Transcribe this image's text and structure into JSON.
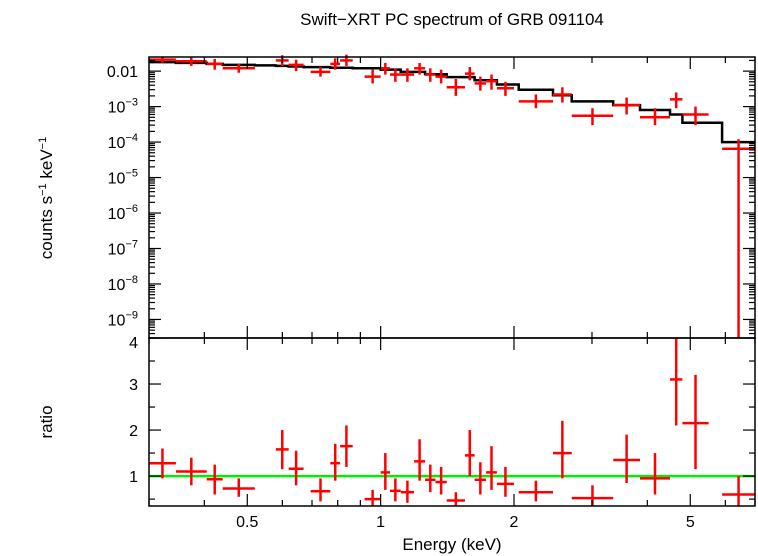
{
  "chart_data": [
    {
      "panel": "spectrum",
      "type": "scatter",
      "title": "Swift−XRT PC spectrum of GRB 091104",
      "ylabel_parts": {
        "pre": "counts s",
        "sup1": "−1",
        "mid": " keV",
        "sup2": "−1"
      },
      "xscale": "log",
      "yscale": "log",
      "xlim": [
        0.3,
        7.0
      ],
      "ylim": [
        3e-10,
        0.025
      ],
      "yticks": [
        {
          "v": 0.01,
          "base": "0.01",
          "exp": ""
        },
        {
          "v": 0.001,
          "base": "10",
          "exp": "−3"
        },
        {
          "v": 0.0001,
          "base": "10",
          "exp": "−4"
        },
        {
          "v": 1e-05,
          "base": "10",
          "exp": "−5"
        },
        {
          "v": 1e-06,
          "base": "10",
          "exp": "−6"
        },
        {
          "v": 1e-07,
          "base": "10",
          "exp": "−7"
        },
        {
          "v": 1e-08,
          "base": "10",
          "exp": "−8"
        },
        {
          "v": 1e-09,
          "base": "10",
          "exp": "−9"
        }
      ],
      "data_color": "#ff0000",
      "model_color": "#000000",
      "data": [
        {
          "x0": 0.3,
          "x1": 0.345,
          "y": 0.021,
          "ylo": 0.017,
          "yhi": 0.026
        },
        {
          "x0": 0.345,
          "x1": 0.405,
          "y": 0.019,
          "ylo": 0.014,
          "yhi": 0.025
        },
        {
          "x0": 0.405,
          "x1": 0.44,
          "y": 0.016,
          "ylo": 0.011,
          "yhi": 0.022
        },
        {
          "x0": 0.44,
          "x1": 0.52,
          "y": 0.012,
          "ylo": 0.009,
          "yhi": 0.016
        },
        {
          "x0": 0.58,
          "x1": 0.62,
          "y": 0.02,
          "ylo": 0.014,
          "yhi": 0.028
        },
        {
          "x0": 0.62,
          "x1": 0.67,
          "y": 0.015,
          "ylo": 0.01,
          "yhi": 0.021
        },
        {
          "x0": 0.695,
          "x1": 0.77,
          "y": 0.0095,
          "ylo": 0.007,
          "yhi": 0.013
        },
        {
          "x0": 0.77,
          "x1": 0.81,
          "y": 0.016,
          "ylo": 0.011,
          "yhi": 0.023
        },
        {
          "x0": 0.81,
          "x1": 0.865,
          "y": 0.02,
          "ylo": 0.014,
          "yhi": 0.029
        },
        {
          "x0": 0.92,
          "x1": 1.0,
          "y": 0.007,
          "ylo": 0.0045,
          "yhi": 0.011
        },
        {
          "x0": 1.0,
          "x1": 1.05,
          "y": 0.012,
          "ylo": 0.008,
          "yhi": 0.017
        },
        {
          "x0": 1.05,
          "x1": 1.11,
          "y": 0.008,
          "ylo": 0.005,
          "yhi": 0.012
        },
        {
          "x0": 1.11,
          "x1": 1.19,
          "y": 0.008,
          "ylo": 0.005,
          "yhi": 0.012
        },
        {
          "x0": 1.19,
          "x1": 1.26,
          "y": 0.012,
          "ylo": 0.008,
          "yhi": 0.017
        },
        {
          "x0": 1.26,
          "x1": 1.33,
          "y": 0.008,
          "ylo": 0.005,
          "yhi": 0.012
        },
        {
          "x0": 1.33,
          "x1": 1.41,
          "y": 0.007,
          "ylo": 0.0045,
          "yhi": 0.011
        },
        {
          "x0": 1.41,
          "x1": 1.55,
          "y": 0.0035,
          "ylo": 0.002,
          "yhi": 0.006
        },
        {
          "x0": 1.55,
          "x1": 1.63,
          "y": 0.0085,
          "ylo": 0.0055,
          "yhi": 0.013
        },
        {
          "x0": 1.63,
          "x1": 1.73,
          "y": 0.0045,
          "ylo": 0.0028,
          "yhi": 0.007
        },
        {
          "x0": 1.73,
          "x1": 1.83,
          "y": 0.0052,
          "ylo": 0.003,
          "yhi": 0.008
        },
        {
          "x0": 1.83,
          "x1": 2.0,
          "y": 0.0033,
          "ylo": 0.002,
          "yhi": 0.005
        },
        {
          "x0": 2.05,
          "x1": 2.45,
          "y": 0.0014,
          "ylo": 0.0009,
          "yhi": 0.0022
        },
        {
          "x0": 2.45,
          "x1": 2.7,
          "y": 0.0022,
          "ylo": 0.0013,
          "yhi": 0.0035
        },
        {
          "x0": 2.7,
          "x1": 3.35,
          "y": 0.00055,
          "ylo": 0.0003,
          "yhi": 0.0009
        },
        {
          "x0": 3.35,
          "x1": 3.85,
          "y": 0.0011,
          "ylo": 0.0006,
          "yhi": 0.0018
        },
        {
          "x0": 3.85,
          "x1": 4.5,
          "y": 0.0005,
          "ylo": 0.0003,
          "yhi": 0.0009
        },
        {
          "x0": 4.5,
          "x1": 4.8,
          "y": 0.0016,
          "ylo": 0.0009,
          "yhi": 0.0025
        },
        {
          "x0": 4.8,
          "x1": 5.5,
          "y": 0.0006,
          "ylo": 0.0003,
          "yhi": 0.001
        },
        {
          "x0": 5.9,
          "x1": 7.0,
          "y": 6.5e-05,
          "ylo": 3e-10,
          "yhi": 0.00012
        }
      ],
      "model": [
        {
          "x0": 0.3,
          "x1": 0.345,
          "y": 0.018
        },
        {
          "x0": 0.345,
          "x1": 0.405,
          "y": 0.017
        },
        {
          "x0": 0.405,
          "x1": 0.44,
          "y": 0.016
        },
        {
          "x0": 0.44,
          "x1": 0.52,
          "y": 0.015
        },
        {
          "x0": 0.52,
          "x1": 0.58,
          "y": 0.0145
        },
        {
          "x0": 0.58,
          "x1": 0.62,
          "y": 0.014
        },
        {
          "x0": 0.62,
          "x1": 0.67,
          "y": 0.0135
        },
        {
          "x0": 0.67,
          "x1": 0.77,
          "y": 0.013
        },
        {
          "x0": 0.77,
          "x1": 0.865,
          "y": 0.0125
        },
        {
          "x0": 0.865,
          "x1": 1.0,
          "y": 0.012
        },
        {
          "x0": 1.0,
          "x1": 1.11,
          "y": 0.011
        },
        {
          "x0": 1.11,
          "x1": 1.26,
          "y": 0.0095
        },
        {
          "x0": 1.26,
          "x1": 1.41,
          "y": 0.0082
        },
        {
          "x0": 1.41,
          "x1": 1.63,
          "y": 0.0068
        },
        {
          "x0": 1.63,
          "x1": 1.83,
          "y": 0.0055
        },
        {
          "x0": 1.83,
          "x1": 2.05,
          "y": 0.0042
        },
        {
          "x0": 2.05,
          "x1": 2.45,
          "y": 0.003
        },
        {
          "x0": 2.45,
          "x1": 2.7,
          "y": 0.0021
        },
        {
          "x0": 2.7,
          "x1": 3.35,
          "y": 0.0014
        },
        {
          "x0": 3.35,
          "x1": 3.85,
          "y": 0.0011
        },
        {
          "x0": 3.85,
          "x1": 4.5,
          "y": 0.0008
        },
        {
          "x0": 4.5,
          "x1": 4.8,
          "y": 0.0006
        },
        {
          "x0": 4.8,
          "x1": 5.9,
          "y": 0.00035
        },
        {
          "x0": 5.9,
          "x1": 7.0,
          "y": 0.0001
        }
      ]
    },
    {
      "panel": "ratio",
      "type": "scatter",
      "ylabel": "ratio",
      "xlabel": "Energy (keV)",
      "xscale": "log",
      "yscale": "linear",
      "xlim": [
        0.3,
        7.0
      ],
      "ylim": [
        0.35,
        4.0
      ],
      "yticks": [
        "1",
        "2",
        "3",
        "4"
      ],
      "xticks": [
        {
          "v": 0.5,
          "label": "0.5"
        },
        {
          "v": 1,
          "label": "1"
        },
        {
          "v": 2,
          "label": "2"
        },
        {
          "v": 5,
          "label": "5"
        }
      ],
      "reference_line": 1,
      "reference_color": "#00ee00",
      "data": [
        {
          "x0": 0.3,
          "x1": 0.345,
          "y": 1.28,
          "ylo": 0.95,
          "yhi": 1.6
        },
        {
          "x0": 0.345,
          "x1": 0.405,
          "y": 1.1,
          "ylo": 0.8,
          "yhi": 1.4
        },
        {
          "x0": 0.405,
          "x1": 0.44,
          "y": 0.93,
          "ylo": 0.6,
          "yhi": 1.25
        },
        {
          "x0": 0.44,
          "x1": 0.52,
          "y": 0.73,
          "ylo": 0.55,
          "yhi": 0.95
        },
        {
          "x0": 0.58,
          "x1": 0.62,
          "y": 1.58,
          "ylo": 1.15,
          "yhi": 2.0
        },
        {
          "x0": 0.62,
          "x1": 0.67,
          "y": 1.16,
          "ylo": 0.8,
          "yhi": 1.55
        },
        {
          "x0": 0.695,
          "x1": 0.77,
          "y": 0.67,
          "ylo": 0.45,
          "yhi": 0.95
        },
        {
          "x0": 0.77,
          "x1": 0.81,
          "y": 1.28,
          "ylo": 0.9,
          "yhi": 1.7
        },
        {
          "x0": 0.81,
          "x1": 0.865,
          "y": 1.65,
          "ylo": 1.2,
          "yhi": 2.1
        },
        {
          "x0": 0.92,
          "x1": 1.0,
          "y": 0.5,
          "ylo": 0.35,
          "yhi": 0.7
        },
        {
          "x0": 1.0,
          "x1": 1.05,
          "y": 1.08,
          "ylo": 0.7,
          "yhi": 1.5
        },
        {
          "x0": 1.05,
          "x1": 1.11,
          "y": 0.68,
          "ylo": 0.45,
          "yhi": 0.95
        },
        {
          "x0": 1.11,
          "x1": 1.19,
          "y": 0.65,
          "ylo": 0.42,
          "yhi": 0.9
        },
        {
          "x0": 1.19,
          "x1": 1.26,
          "y": 1.32,
          "ylo": 0.9,
          "yhi": 1.8
        },
        {
          "x0": 1.26,
          "x1": 1.33,
          "y": 0.92,
          "ylo": 0.65,
          "yhi": 1.25
        },
        {
          "x0": 1.33,
          "x1": 1.41,
          "y": 0.87,
          "ylo": 0.6,
          "yhi": 1.2
        },
        {
          "x0": 1.41,
          "x1": 1.55,
          "y": 0.47,
          "ylo": 0.35,
          "yhi": 0.65
        },
        {
          "x0": 1.55,
          "x1": 1.63,
          "y": 1.45,
          "ylo": 1.0,
          "yhi": 2.0
        },
        {
          "x0": 1.63,
          "x1": 1.73,
          "y": 0.92,
          "ylo": 0.6,
          "yhi": 1.3
        },
        {
          "x0": 1.73,
          "x1": 1.83,
          "y": 1.08,
          "ylo": 0.7,
          "yhi": 1.65
        },
        {
          "x0": 1.83,
          "x1": 2.0,
          "y": 0.83,
          "ylo": 0.55,
          "yhi": 1.2
        },
        {
          "x0": 2.05,
          "x1": 2.45,
          "y": 0.65,
          "ylo": 0.45,
          "yhi": 0.9
        },
        {
          "x0": 2.45,
          "x1": 2.7,
          "y": 1.5,
          "ylo": 0.95,
          "yhi": 2.2
        },
        {
          "x0": 2.7,
          "x1": 3.35,
          "y": 0.52,
          "ylo": 0.35,
          "yhi": 0.8
        },
        {
          "x0": 3.35,
          "x1": 3.85,
          "y": 1.35,
          "ylo": 0.85,
          "yhi": 1.9
        },
        {
          "x0": 3.85,
          "x1": 4.5,
          "y": 0.95,
          "ylo": 0.6,
          "yhi": 1.5
        },
        {
          "x0": 4.5,
          "x1": 4.8,
          "y": 3.1,
          "ylo": 2.1,
          "yhi": 4.0
        },
        {
          "x0": 4.8,
          "x1": 5.5,
          "y": 2.15,
          "ylo": 1.15,
          "yhi": 3.2
        },
        {
          "x0": 5.9,
          "x1": 7.0,
          "y": 0.6,
          "ylo": 0.35,
          "yhi": 1.0
        }
      ]
    }
  ]
}
